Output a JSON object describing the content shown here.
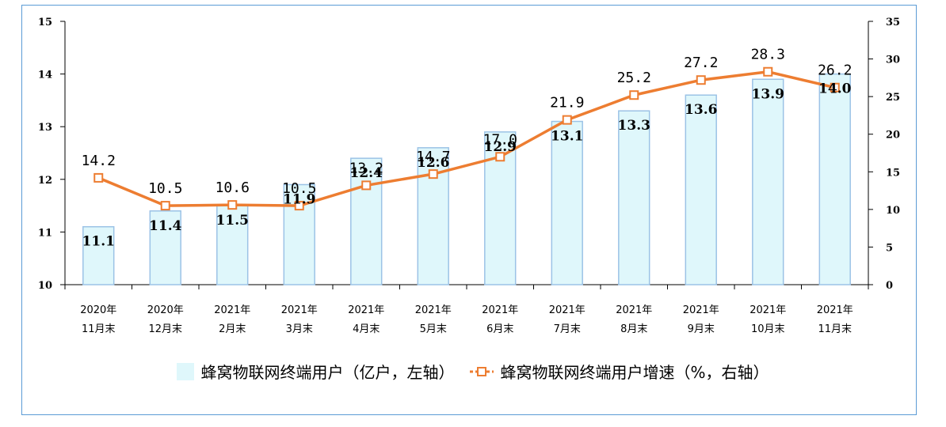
{
  "colors": {
    "bar_fill": "#dff7fb",
    "bar_stroke": "#9cc3e6",
    "line": "#ed7d31",
    "marker_fill": "#ffffff",
    "frame": "#5b9bd5"
  },
  "chart_data": {
    "type": "bar",
    "categories": [
      [
        "2020年",
        "11月末"
      ],
      [
        "2020年",
        "12月末"
      ],
      [
        "2021年",
        "2月末"
      ],
      [
        "2021年",
        "3月末"
      ],
      [
        "2021年",
        "4月末"
      ],
      [
        "2021年",
        "5月末"
      ],
      [
        "2021年",
        "6月末"
      ],
      [
        "2021年",
        "7月末"
      ],
      [
        "2021年",
        "8月末"
      ],
      [
        "2021年",
        "9月末"
      ],
      [
        "2021年",
        "10月末"
      ],
      [
        "2021年",
        "11月末"
      ]
    ],
    "series": [
      {
        "name": "蜂窝物联网终端用户（亿户，左轴）",
        "type": "bar",
        "axis": "left",
        "values": [
          11.1,
          11.4,
          11.5,
          11.9,
          12.4,
          12.6,
          12.9,
          13.1,
          13.3,
          13.6,
          13.9,
          14.0
        ]
      },
      {
        "name": "蜂窝物联网终端用户增速（%，右轴）",
        "type": "line",
        "axis": "right",
        "values": [
          14.2,
          10.5,
          10.6,
          10.5,
          13.2,
          14.7,
          17.0,
          21.9,
          25.2,
          27.2,
          28.3,
          26.2
        ]
      }
    ],
    "bar_labels": [
      "11.1",
      "11.4",
      "11.5",
      "11.9",
      "12.4",
      "12.6",
      "12.9",
      "13.1",
      "13.3",
      "13.6",
      "13.9",
      "14.0"
    ],
    "line_labels": [
      "14.2",
      "10.5",
      "10.6",
      "10.5",
      "13.2",
      "14.7",
      "17.0",
      "21.9",
      "25.2",
      "27.2",
      "28.3",
      "26.2"
    ],
    "y_left": {
      "range": [
        10,
        15
      ],
      "ticks": [
        "10",
        "11",
        "12",
        "13",
        "14",
        "15"
      ]
    },
    "y_right": {
      "range": [
        0,
        35
      ],
      "ticks": [
        "0",
        "5",
        "10",
        "15",
        "20",
        "25",
        "30",
        "35"
      ]
    },
    "legend_position": "bottom",
    "grid": false
  },
  "legend": {
    "bar_label": "蜂窝物联网终端用户（亿户，左轴）",
    "line_label": "蜂窝物联网终端用户增速（%，右轴）"
  }
}
